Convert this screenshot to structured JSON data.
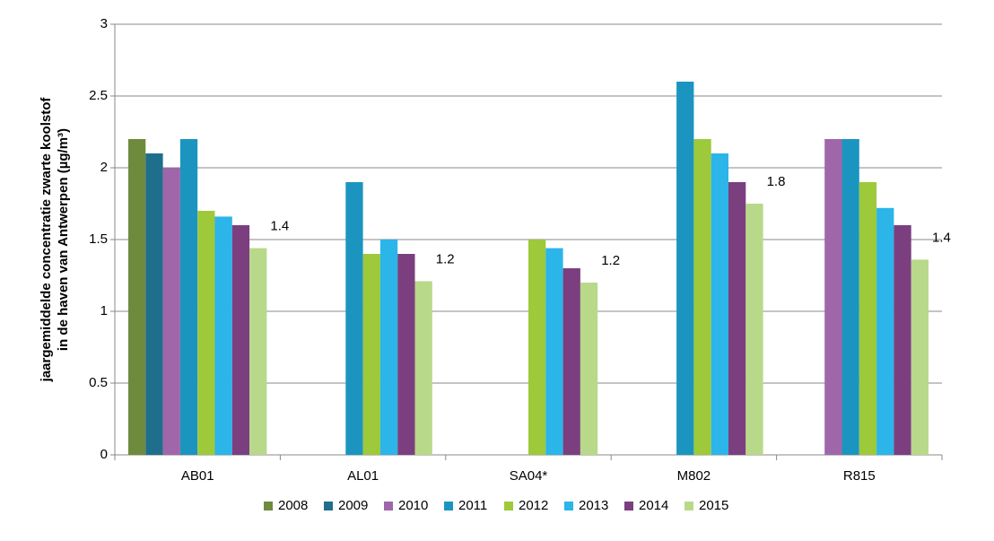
{
  "chart_data": {
    "type": "bar",
    "y_label": [
      "jaargemiddelde concentratie zwarte koolstof",
      "in de haven van Antwerpen  (µg/m³)"
    ],
    "categories": [
      "AB01",
      "AL01",
      "SA04*",
      "M802",
      "R815"
    ],
    "series": [
      {
        "name": "2008",
        "color": "#6e8b3d",
        "values": [
          2.2,
          null,
          null,
          null,
          null
        ]
      },
      {
        "name": "2009",
        "color": "#1f6e8c",
        "values": [
          2.1,
          null,
          null,
          null,
          null
        ]
      },
      {
        "name": "2010",
        "color": "#a066aa",
        "values": [
          2.0,
          null,
          null,
          null,
          2.2
        ]
      },
      {
        "name": "2011",
        "color": "#1b95c0",
        "values": [
          2.2,
          1.9,
          null,
          2.6,
          2.2
        ]
      },
      {
        "name": "2012",
        "color": "#9dc93b",
        "values": [
          1.7,
          1.4,
          1.5,
          2.2,
          1.9
        ]
      },
      {
        "name": "2013",
        "color": "#2bb5e8",
        "values": [
          1.66,
          1.5,
          1.44,
          2.1,
          1.72
        ]
      },
      {
        "name": "2014",
        "color": "#7b3f80",
        "values": [
          1.6,
          1.4,
          1.3,
          1.9,
          1.6
        ]
      },
      {
        "name": "2015",
        "color": "#b9d98a",
        "values": [
          1.44,
          1.21,
          1.2,
          1.75,
          1.36
        ],
        "value_labels": [
          "1.4",
          "1.2",
          "1.2",
          "1.8",
          "1.4"
        ]
      }
    ],
    "ylim": [
      0,
      3
    ],
    "yticks": [
      0,
      0.5,
      1,
      1.5,
      2,
      2.5,
      3
    ],
    "grid": true,
    "legend": "bottom"
  }
}
